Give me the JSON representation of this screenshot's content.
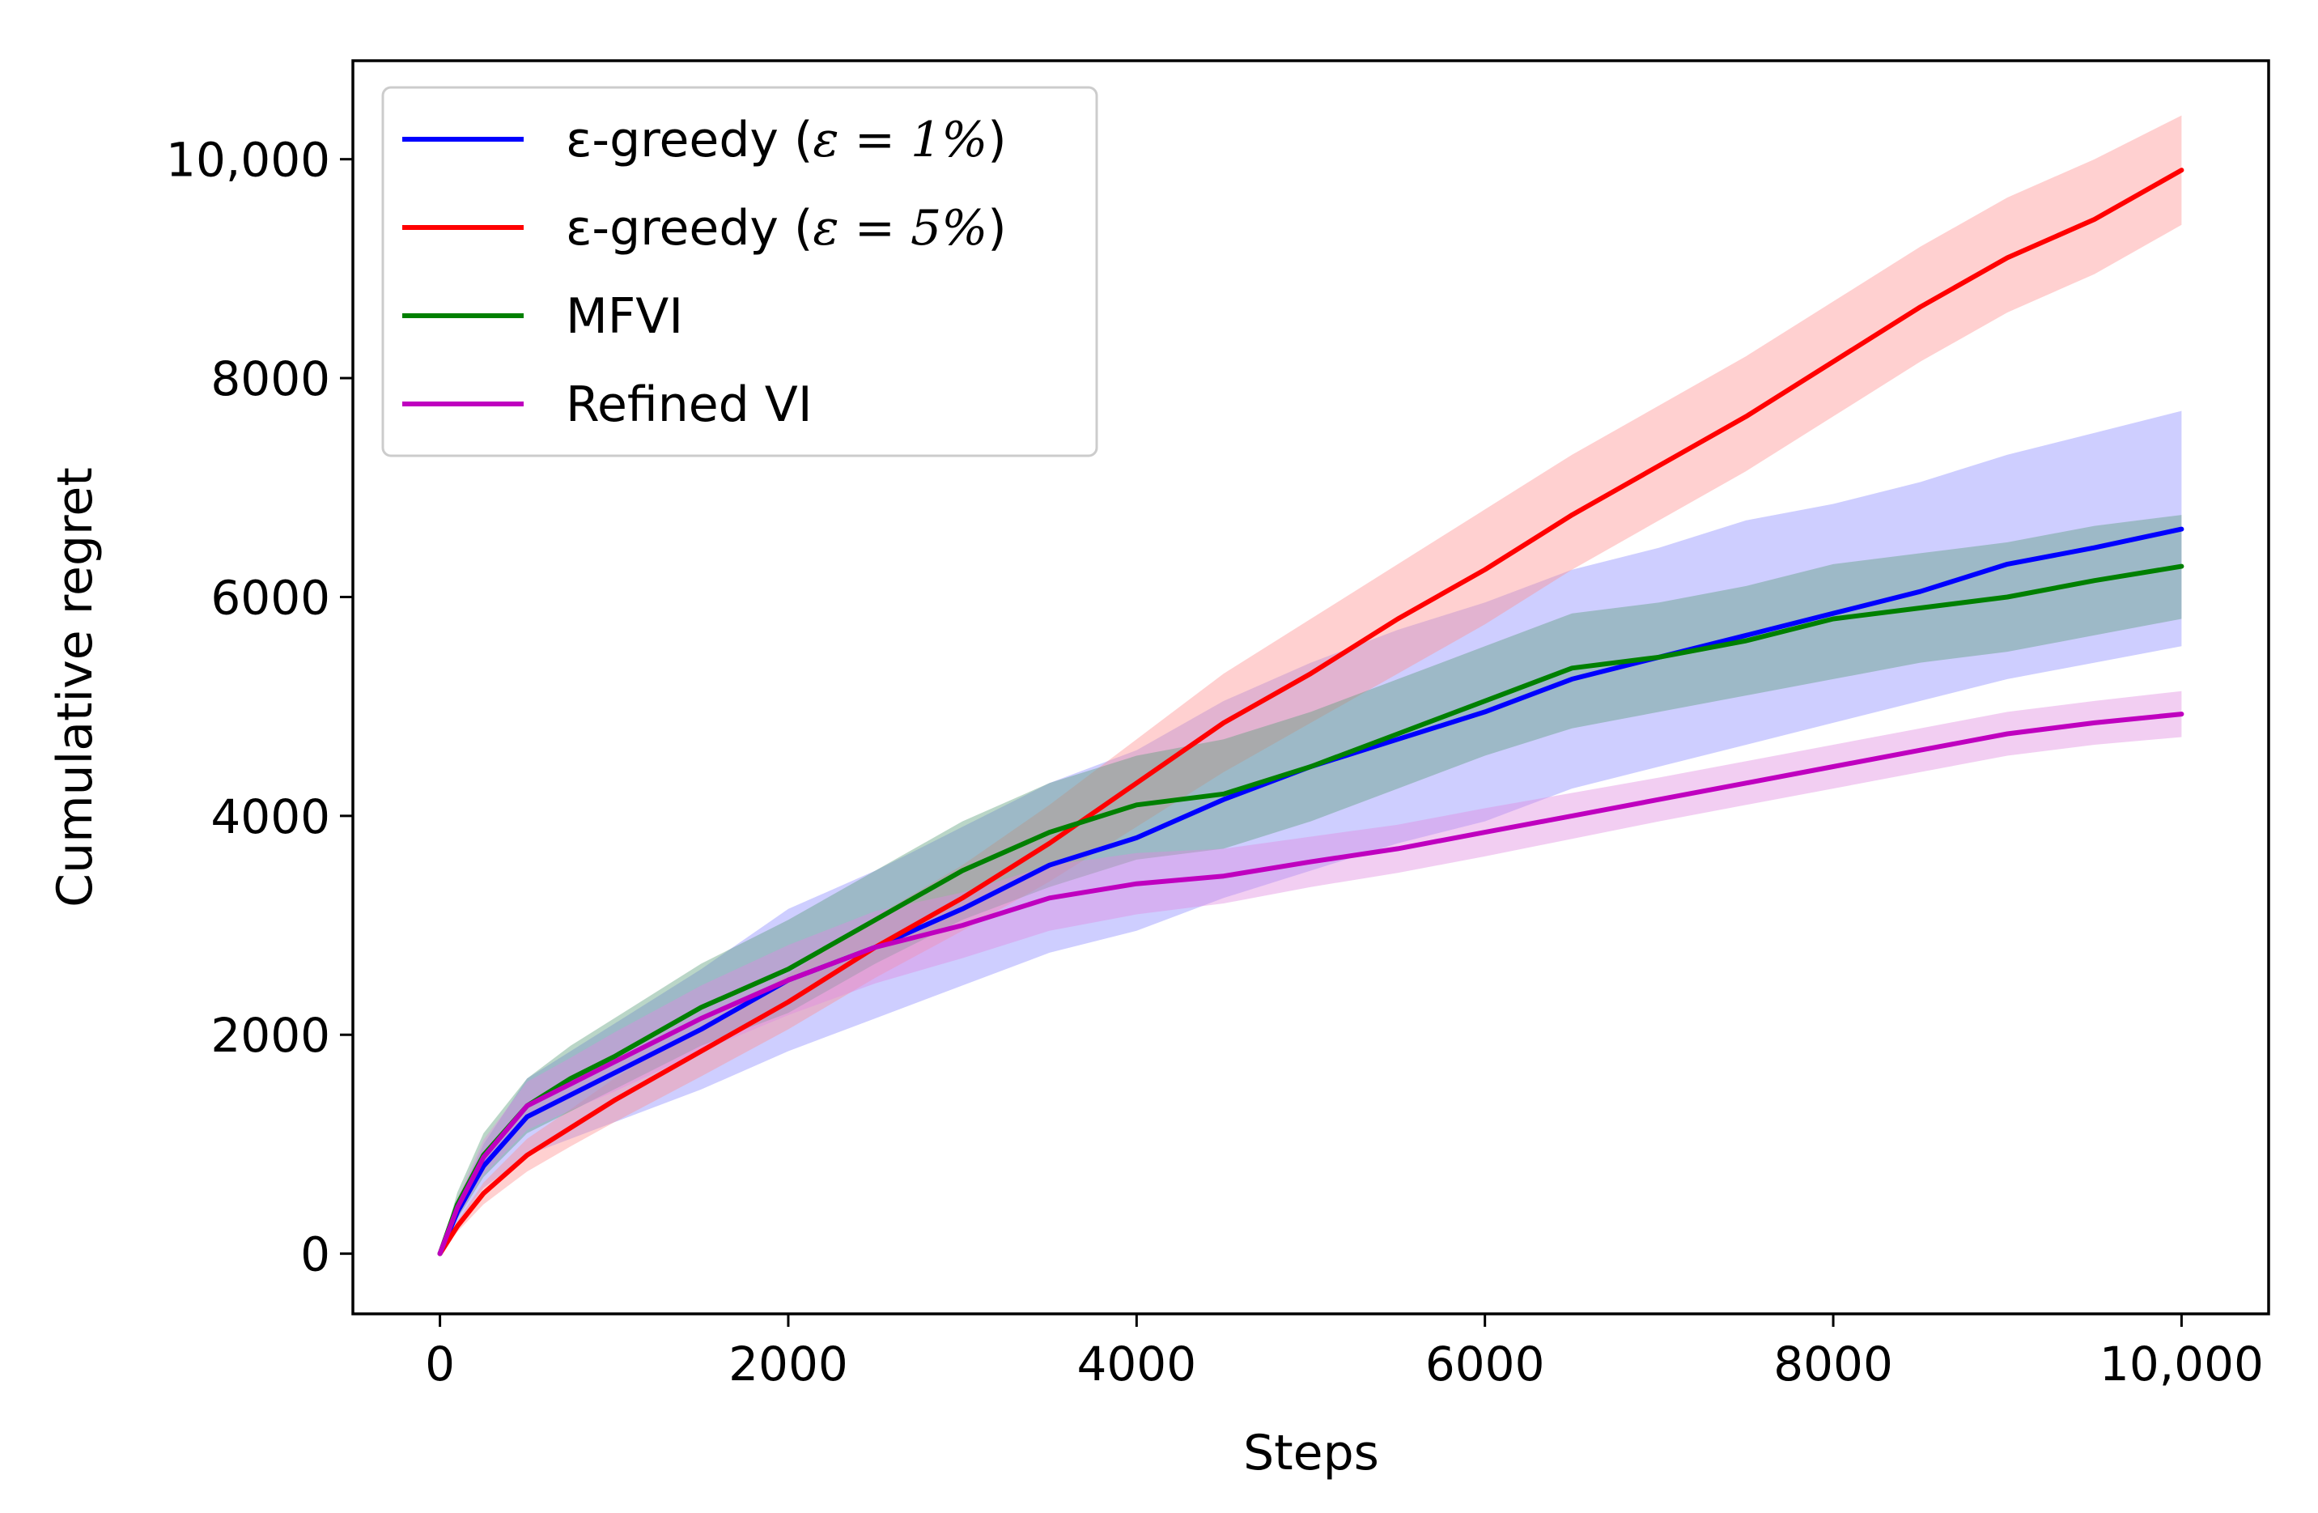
{
  "chart_data": {
    "type": "line",
    "title": "",
    "xlabel": "Steps",
    "ylabel": "Cumulative regret",
    "xlim": [
      -500,
      10500
    ],
    "ylim": [
      -550,
      10900
    ],
    "grid": false,
    "legend_position": "top-left",
    "xticks": [
      {
        "value": 0,
        "label": "0"
      },
      {
        "value": 2000,
        "label": "2000"
      },
      {
        "value": 4000,
        "label": "4000"
      },
      {
        "value": 6000,
        "label": "6000"
      },
      {
        "value": 8000,
        "label": "8000"
      },
      {
        "value": 10000,
        "label": "10,000"
      }
    ],
    "yticks": [
      {
        "value": 0,
        "label": "0"
      },
      {
        "value": 2000,
        "label": "2000"
      },
      {
        "value": 4000,
        "label": "4000"
      },
      {
        "value": 6000,
        "label": "6000"
      },
      {
        "value": 8000,
        "label": "8000"
      },
      {
        "value": 10000,
        "label": "10,000"
      }
    ],
    "x": [
      0,
      100,
      250,
      500,
      750,
      1000,
      1500,
      2000,
      2500,
      3000,
      3500,
      4000,
      4500,
      5000,
      5500,
      6000,
      6500,
      7000,
      7500,
      8000,
      8500,
      9000,
      9500,
      10000
    ],
    "series": [
      {
        "name": "ε-greedy (ε = 1%)",
        "legend_prefix": "ε-greedy (",
        "legend_math": "ε = 1%",
        "legend_suffix": ")",
        "color": "#0000ff",
        "band_color": "#8a8aff",
        "values": [
          0,
          380,
          800,
          1250,
          1450,
          1650,
          2050,
          2500,
          2800,
          3150,
          3550,
          3800,
          4150,
          4450,
          4700,
          4950,
          5250,
          5450,
          5650,
          5850,
          6050,
          6300,
          6450,
          6620
        ],
        "lower": [
          0,
          280,
          600,
          900,
          1050,
          1200,
          1500,
          1850,
          2150,
          2450,
          2750,
          2950,
          3250,
          3500,
          3750,
          3950,
          4250,
          4450,
          4650,
          4850,
          5050,
          5250,
          5400,
          5550
        ],
        "upper": [
          0,
          480,
          1000,
          1600,
          1850,
          2100,
          2600,
          3150,
          3500,
          3900,
          4300,
          4600,
          5050,
          5400,
          5700,
          5950,
          6250,
          6450,
          6700,
          6850,
          7050,
          7300,
          7500,
          7700
        ]
      },
      {
        "name": "ε-greedy (ε = 5%)",
        "legend_prefix": "ε-greedy (",
        "legend_math": "ε = 5%",
        "legend_suffix": ")",
        "color": "#ff0000",
        "band_color": "#ff8f8f",
        "values": [
          0,
          250,
          550,
          900,
          1150,
          1400,
          1850,
          2300,
          2800,
          3250,
          3750,
          4300,
          4850,
          5300,
          5800,
          6250,
          6750,
          7200,
          7650,
          8150,
          8650,
          9100,
          9450,
          9900
        ],
        "lower": [
          0,
          200,
          450,
          750,
          980,
          1200,
          1620,
          2050,
          2520,
          2950,
          3400,
          3900,
          4400,
          4850,
          5300,
          5750,
          6250,
          6700,
          7150,
          7650,
          8150,
          8600,
          8950,
          9400
        ],
        "upper": [
          0,
          300,
          650,
          1050,
          1320,
          1600,
          2080,
          2550,
          3080,
          3550,
          4100,
          4700,
          5300,
          5800,
          6300,
          6800,
          7300,
          7750,
          8200,
          8700,
          9200,
          9650,
          10000,
          10400
        ]
      },
      {
        "name": "MFVI",
        "legend_prefix": "MFVI",
        "legend_math": "",
        "legend_suffix": "",
        "color": "#008000",
        "band_color": "#5a9e7a",
        "values": [
          0,
          450,
          900,
          1350,
          1600,
          1800,
          2250,
          2600,
          3050,
          3500,
          3850,
          4100,
          4200,
          4450,
          4750,
          5050,
          5350,
          5450,
          5600,
          5800,
          5900,
          6000,
          6150,
          6280
        ],
        "lower": [
          0,
          320,
          700,
          1100,
          1300,
          1500,
          1900,
          2200,
          2650,
          3050,
          3350,
          3600,
          3700,
          3950,
          4250,
          4550,
          4800,
          4950,
          5100,
          5250,
          5400,
          5500,
          5650,
          5800
        ],
        "upper": [
          0,
          560,
          1100,
          1600,
          1900,
          2150,
          2650,
          3050,
          3500,
          3950,
          4300,
          4550,
          4700,
          4950,
          5250,
          5550,
          5850,
          5950,
          6100,
          6300,
          6400,
          6500,
          6650,
          6750
        ]
      },
      {
        "name": "Refined VI",
        "legend_prefix": "Refined VI",
        "legend_math": "",
        "legend_suffix": "",
        "color": "#bf00bf",
        "band_color": "#e08ae0",
        "values": [
          0,
          420,
          880,
          1350,
          1550,
          1750,
          2150,
          2500,
          2800,
          3000,
          3250,
          3380,
          3450,
          3580,
          3700,
          3850,
          4000,
          4150,
          4300,
          4450,
          4600,
          4750,
          4850,
          4930
        ],
        "lower": [
          0,
          330,
          720,
          1130,
          1310,
          1480,
          1850,
          2180,
          2470,
          2700,
          2950,
          3100,
          3200,
          3350,
          3480,
          3630,
          3790,
          3950,
          4100,
          4250,
          4400,
          4550,
          4650,
          4720
        ],
        "upper": [
          0,
          510,
          1040,
          1570,
          1790,
          2020,
          2450,
          2820,
          3130,
          3300,
          3550,
          3660,
          3700,
          3810,
          3920,
          4070,
          4210,
          4350,
          4500,
          4650,
          4800,
          4950,
          5050,
          5140
        ]
      }
    ]
  }
}
